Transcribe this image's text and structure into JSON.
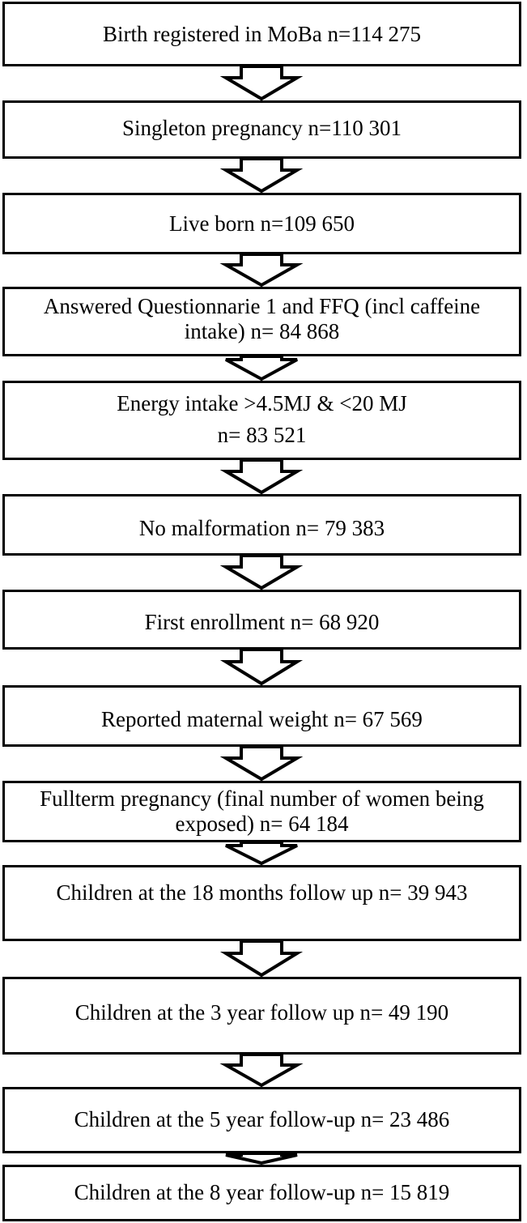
{
  "flowchart": {
    "steps": [
      {
        "lines": [
          "Birth registered in MoBa n=114 275"
        ]
      },
      {
        "lines": [
          "Singleton pregnancy n=110 301"
        ]
      },
      {
        "lines": [
          "Live born n=109 650"
        ]
      },
      {
        "lines": [
          "Answered Questionnarie 1 and FFQ (incl caffeine",
          "intake) n= 84 868"
        ]
      },
      {
        "lines": [
          "Energy intake >4.5MJ & <20 MJ",
          "n= 83 521"
        ]
      },
      {
        "lines": [
          "No malformation n= 79 383"
        ]
      },
      {
        "lines": [
          "First enrollment n= 68 920"
        ]
      },
      {
        "lines": [
          "Reported maternal weight n= 67 569"
        ]
      },
      {
        "lines": [
          "Fullterm pregnancy (final number of women being",
          "exposed) n= 64 184"
        ]
      },
      {
        "lines": [
          "Children at the 18 months follow up n= 39 943"
        ]
      },
      {
        "lines": [
          "Children at the 3 year follow up n= 49 190"
        ]
      },
      {
        "lines": [
          "Children at the 5 year follow-up n= 23 486"
        ]
      },
      {
        "lines": [
          "Children at the 8 year follow-up n= 15 819"
        ]
      }
    ]
  }
}
